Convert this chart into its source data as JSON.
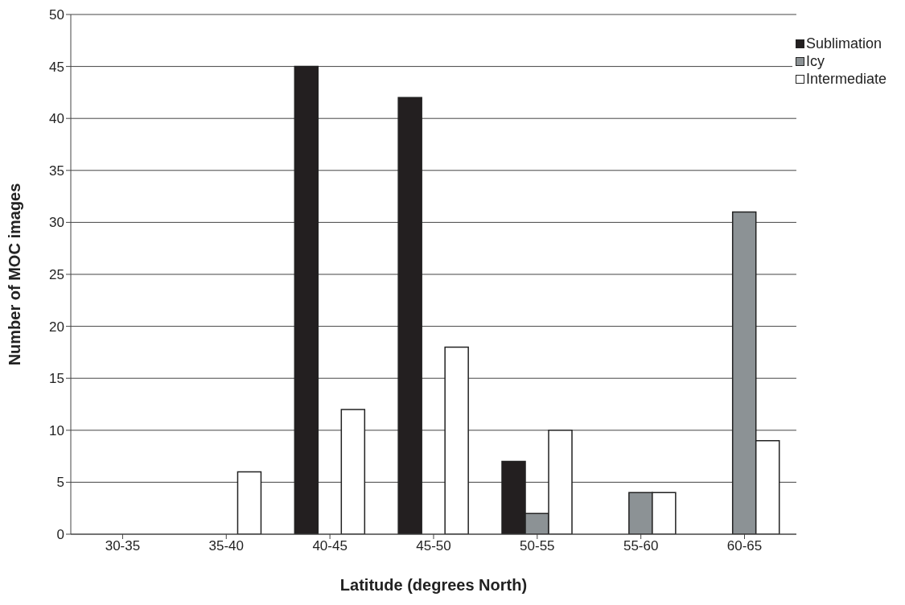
{
  "chart_data": {
    "type": "bar",
    "xlabel": "Latitude (degrees North)",
    "ylabel": "Number of MOC images",
    "categories": [
      "30-35",
      "35-40",
      "40-45",
      "45-50",
      "50-55",
      "55-60",
      "60-65"
    ],
    "series": [
      {
        "name": "Sublimation",
        "color": "#231f20",
        "values": [
          0,
          0,
          45,
          42,
          7,
          0,
          0
        ]
      },
      {
        "name": "Icy",
        "color": "#8c9295",
        "values": [
          0,
          0,
          0,
          0,
          2,
          4,
          31
        ]
      },
      {
        "name": "Intermediate",
        "color": "#ffffff",
        "values": [
          0,
          6,
          12,
          18,
          10,
          4,
          9
        ]
      }
    ],
    "ylim": [
      0,
      50
    ],
    "yticks": [
      0,
      5,
      10,
      15,
      20,
      25,
      30,
      35,
      40,
      45,
      50
    ],
    "grid": "y",
    "legend": "top right"
  }
}
